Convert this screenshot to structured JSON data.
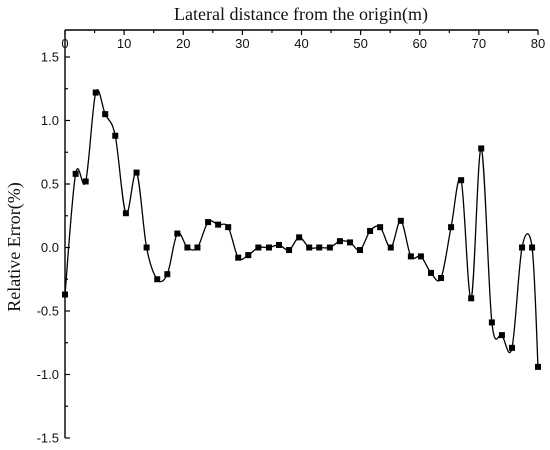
{
  "chart_data": {
    "type": "line",
    "xlabel": "Lateral distance from the origin(m)",
    "ylabel": "Relative Error(%)",
    "xlim": [
      0,
      80
    ],
    "ylim": [
      -1.5,
      1.5
    ],
    "x_ticks": [
      "0",
      "10",
      "20",
      "30",
      "40",
      "50",
      "60",
      "70",
      "80"
    ],
    "y_ticks": [
      "1.5",
      "1.0",
      "0.5",
      "0.0",
      "-0.5",
      "-1.0",
      "-1.5"
    ],
    "x_axis_position": "top",
    "grid": false,
    "legend": "none",
    "series": [
      {
        "x": [
          0,
          1.8,
          3.5,
          5.2,
          6.8,
          8.5,
          10.3,
          12.1,
          13.8,
          15.6,
          17.3,
          19.0,
          20.7,
          22.4,
          24.2,
          25.9,
          27.6,
          29.3,
          31.0,
          32.7,
          34.5,
          36.2,
          37.9,
          39.6,
          41.3,
          43.0,
          44.8,
          46.5,
          48.2,
          49.9,
          51.6,
          53.3,
          55.1,
          56.8,
          58.5,
          60.2,
          61.9,
          63.6,
          65.3,
          67.0,
          68.7,
          70.4,
          72.2,
          73.9,
          75.6,
          77.3,
          79.0,
          80.0
        ],
        "values": [
          -0.37,
          0.58,
          0.52,
          1.22,
          1.05,
          0.88,
          0.27,
          0.59,
          0.0,
          -0.25,
          -0.21,
          0.11,
          0.0,
          0.0,
          0.2,
          0.18,
          0.16,
          -0.08,
          -0.06,
          0.0,
          0.0,
          0.02,
          -0.02,
          0.08,
          0.0,
          0.0,
          0.0,
          0.05,
          0.04,
          -0.02,
          0.13,
          0.16,
          0.0,
          0.21,
          -0.07,
          -0.07,
          -0.2,
          -0.24,
          0.16,
          0.53,
          -0.4,
          0.78,
          -0.59,
          -0.69,
          -0.79,
          0.0,
          0.0,
          -0.94
        ]
      }
    ]
  }
}
